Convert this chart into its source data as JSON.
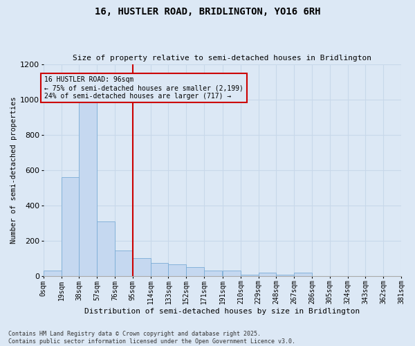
{
  "title": "16, HUSTLER ROAD, BRIDLINGTON, YO16 6RH",
  "subtitle": "Size of property relative to semi-detached houses in Bridlington",
  "xlabel": "Distribution of semi-detached houses by size in Bridlington",
  "ylabel": "Number of semi-detached properties",
  "bin_edges": [
    0,
    19,
    38,
    57,
    76,
    95,
    114,
    133,
    152,
    171,
    191,
    210,
    229,
    248,
    267,
    286,
    305,
    324,
    343,
    362,
    381
  ],
  "bin_labels": [
    "0sqm",
    "19sqm",
    "38sqm",
    "57sqm",
    "76sqm",
    "95sqm",
    "114sqm",
    "133sqm",
    "152sqm",
    "171sqm",
    "191sqm",
    "210sqm",
    "229sqm",
    "248sqm",
    "267sqm",
    "286sqm",
    "305sqm",
    "324sqm",
    "343sqm",
    "362sqm",
    "381sqm"
  ],
  "bar_heights": [
    30,
    560,
    1020,
    310,
    145,
    100,
    75,
    65,
    50,
    30,
    30,
    8,
    20,
    5,
    20,
    0,
    0,
    0,
    0,
    0
  ],
  "bar_color": "#c5d8f0",
  "bar_edge_color": "#7aacd6",
  "bg_color": "#dce8f5",
  "grid_color": "#c8d8ea",
  "annotation_box_color": "#cc0000",
  "vline_color": "#cc0000",
  "ylim": [
    0,
    1200
  ],
  "yticks": [
    0,
    200,
    400,
    600,
    800,
    1000,
    1200
  ],
  "ann_text_line1": "16 HUSTLER ROAD: 96sqm",
  "ann_text_line2": "← 75% of semi-detached houses are smaller (2,199)",
  "ann_text_line3": "24% of semi-detached houses are larger (717) →",
  "footer_line1": "Contains HM Land Registry data © Crown copyright and database right 2025.",
  "footer_line2": "Contains public sector information licensed under the Open Government Licence v3.0."
}
